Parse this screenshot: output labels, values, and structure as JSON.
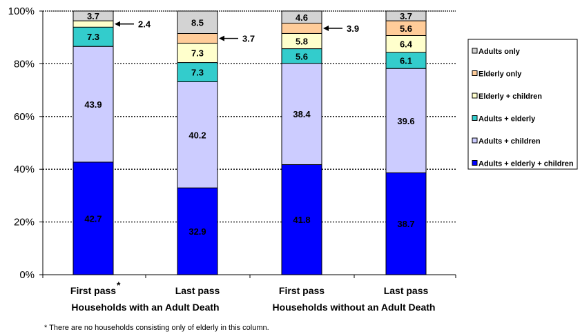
{
  "chart_data": {
    "type": "bar",
    "stacked": true,
    "percent_scale": true,
    "categories": [
      "First pass",
      "Last pass",
      "First pass",
      "Last pass"
    ],
    "category_markers": [
      "*",
      "",
      "",
      ""
    ],
    "groups": [
      {
        "label": "Households with an Adult Death",
        "categories": [
          0,
          1
        ]
      },
      {
        "label": "Households without an Adult Death",
        "categories": [
          2,
          3
        ]
      }
    ],
    "series": [
      {
        "name": "Adults + elderly + children",
        "color": "#0000ff",
        "values": [
          42.7,
          32.9,
          41.8,
          38.7
        ]
      },
      {
        "name": "Adults + children",
        "color": "#ccccff",
        "values": [
          43.9,
          40.2,
          38.4,
          39.6
        ]
      },
      {
        "name": "Adults + elderly",
        "color": "#33cccc",
        "values": [
          7.3,
          7.3,
          5.6,
          6.1
        ]
      },
      {
        "name": "Elderly + children",
        "color": "#ffffcc",
        "values": [
          2.4,
          7.3,
          5.8,
          6.4
        ]
      },
      {
        "name": "Elderly only",
        "color": "#ffcc99",
        "values": [
          0,
          3.7,
          3.9,
          5.6
        ]
      },
      {
        "name": "Adults only",
        "color": "#d3d3d3",
        "values": [
          3.7,
          8.5,
          4.6,
          3.7
        ]
      }
    ],
    "segment_labels": [
      [
        "42.7",
        "32.9",
        "41.8",
        "38.7"
      ],
      [
        "43.9",
        "40.2",
        "38.4",
        "39.6"
      ],
      [
        "7.3",
        "7.3",
        "5.6",
        "6.1"
      ],
      [
        "",
        "7.3",
        "5.8",
        "6.4"
      ],
      [
        "",
        "",
        "",
        "5.6"
      ],
      [
        "3.7",
        "8.5",
        "4.6",
        "3.7"
      ]
    ],
    "callouts": [
      {
        "category": 0,
        "series": 3,
        "text": "2.4"
      },
      {
        "category": 1,
        "series": 4,
        "text": "3.7"
      },
      {
        "category": 2,
        "series": 4,
        "text": "3.9"
      }
    ],
    "y_ticks": [
      "0%",
      "20%",
      "40%",
      "60%",
      "80%",
      "100%"
    ],
    "ylim": [
      0,
      100
    ],
    "grid": true,
    "legend_position": "right",
    "legend_order": [
      "Adults only",
      "Elderly only",
      "Elderly + children",
      "Adults + elderly",
      "Adults + children",
      "Adults + elderly + children"
    ]
  },
  "footnote": "* There are no households consisting only of elderly in this column."
}
